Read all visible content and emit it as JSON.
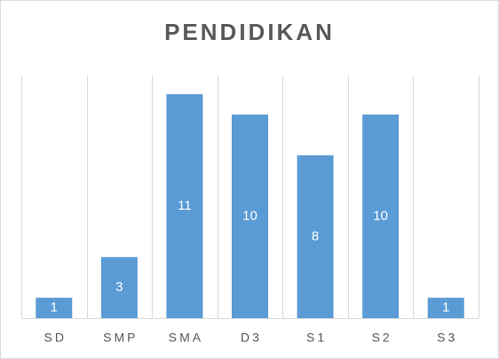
{
  "chart_data": {
    "type": "bar",
    "title": "PENDIDIKAN",
    "categories": [
      "SD",
      "SMP",
      "SMA",
      "D3",
      "S1",
      "S2",
      "S3"
    ],
    "values": [
      1,
      3,
      11,
      10,
      8,
      10,
      1
    ],
    "color": "#5b9bd5"
  }
}
